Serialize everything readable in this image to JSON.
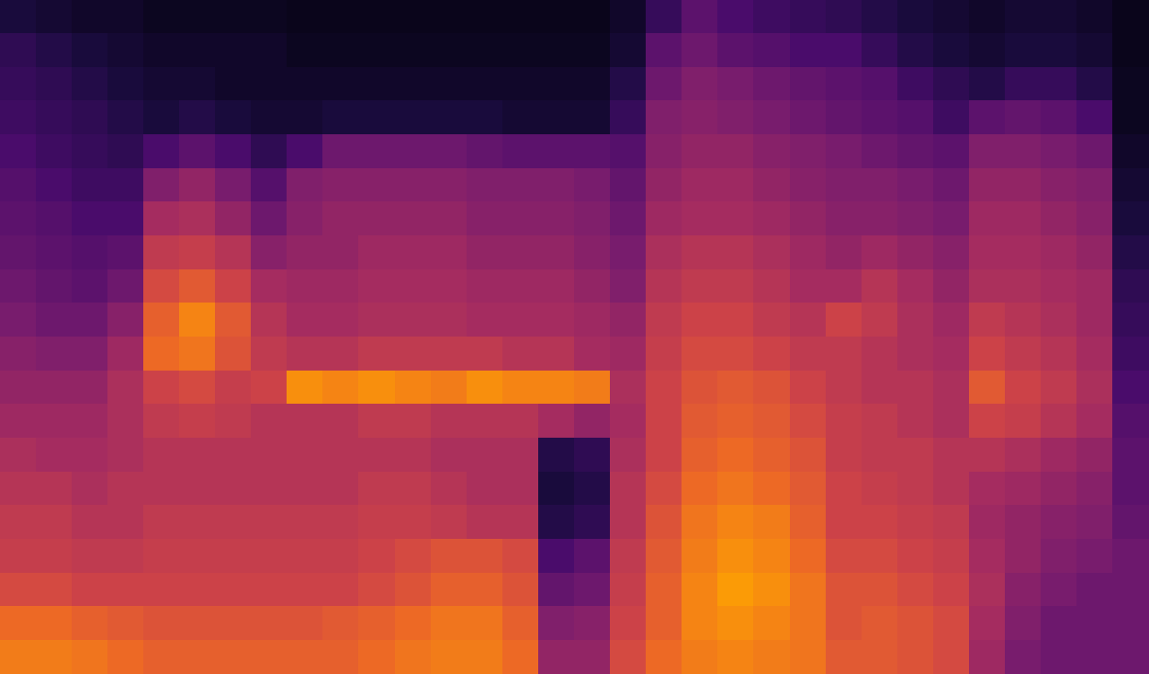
{
  "chart_data": {
    "type": "heatmap",
    "tick_labels": false,
    "grid": false,
    "color_range": [
      0,
      100
    ],
    "cells": [
      [
        12,
        10,
        8,
        8,
        6,
        6,
        6,
        6,
        5,
        5,
        5,
        5,
        5,
        5,
        5,
        5,
        5,
        8,
        20,
        30,
        25,
        22,
        20,
        18,
        15,
        12,
        10,
        8,
        10,
        10,
        8,
        5
      ],
      [
        18,
        15,
        12,
        10,
        8,
        8,
        8,
        8,
        6,
        6,
        6,
        6,
        6,
        6,
        6,
        6,
        6,
        10,
        30,
        35,
        30,
        28,
        25,
        25,
        20,
        15,
        12,
        10,
        12,
        12,
        10,
        5
      ],
      [
        20,
        18,
        15,
        12,
        10,
        10,
        8,
        8,
        8,
        8,
        8,
        8,
        8,
        8,
        8,
        8,
        8,
        15,
        35,
        40,
        38,
        35,
        32,
        30,
        28,
        22,
        18,
        15,
        20,
        20,
        15,
        6
      ],
      [
        22,
        20,
        18,
        15,
        12,
        15,
        12,
        10,
        10,
        12,
        12,
        12,
        12,
        12,
        10,
        10,
        10,
        20,
        40,
        42,
        40,
        38,
        35,
        32,
        30,
        28,
        22,
        30,
        32,
        30,
        25,
        6
      ],
      [
        25,
        22,
        20,
        18,
        25,
        30,
        25,
        18,
        25,
        35,
        35,
        35,
        35,
        32,
        30,
        30,
        30,
        28,
        42,
        45,
        45,
        42,
        40,
        38,
        35,
        32,
        30,
        40,
        40,
        38,
        35,
        8
      ],
      [
        28,
        25,
        22,
        22,
        40,
        45,
        38,
        28,
        40,
        42,
        42,
        42,
        42,
        40,
        40,
        40,
        38,
        32,
        45,
        48,
        48,
        45,
        42,
        40,
        40,
        38,
        35,
        45,
        45,
        42,
        40,
        10
      ],
      [
        30,
        28,
        25,
        25,
        50,
        52,
        45,
        35,
        42,
        45,
        45,
        45,
        45,
        42,
        42,
        42,
        40,
        35,
        48,
        50,
        50,
        48,
        45,
        42,
        42,
        40,
        38,
        48,
        48,
        45,
        42,
        12
      ],
      [
        32,
        30,
        28,
        30,
        58,
        60,
        55,
        42,
        45,
        45,
        48,
        48,
        48,
        45,
        45,
        45,
        42,
        38,
        52,
        55,
        55,
        52,
        48,
        45,
        48,
        45,
        42,
        50,
        50,
        48,
        45,
        15
      ],
      [
        35,
        32,
        30,
        35,
        65,
        70,
        62,
        50,
        48,
        48,
        50,
        50,
        50,
        48,
        48,
        48,
        45,
        40,
        55,
        58,
        58,
        55,
        50,
        50,
        55,
        50,
        45,
        52,
        52,
        50,
        48,
        18
      ],
      [
        38,
        35,
        35,
        42,
        72,
        82,
        70,
        55,
        50,
        50,
        52,
        52,
        52,
        50,
        50,
        50,
        48,
        45,
        58,
        62,
        62,
        58,
        55,
        62,
        58,
        52,
        48,
        58,
        55,
        52,
        48,
        20
      ],
      [
        42,
        40,
        40,
        48,
        75,
        78,
        68,
        58,
        55,
        55,
        58,
        58,
        58,
        58,
        55,
        55,
        50,
        48,
        60,
        65,
        65,
        62,
        58,
        58,
        55,
        52,
        50,
        62,
        58,
        55,
        50,
        22
      ],
      [
        45,
        45,
        45,
        52,
        62,
        65,
        60,
        62,
        85,
        82,
        85,
        82,
        80,
        85,
        82,
        82,
        80,
        52,
        62,
        68,
        70,
        68,
        62,
        58,
        55,
        55,
        52,
        70,
        62,
        58,
        52,
        25
      ],
      [
        48,
        48,
        48,
        52,
        58,
        60,
        58,
        55,
        55,
        55,
        58,
        58,
        55,
        55,
        55,
        50,
        45,
        50,
        62,
        70,
        72,
        70,
        65,
        60,
        58,
        55,
        52,
        62,
        60,
        55,
        50,
        28
      ],
      [
        52,
        50,
        50,
        52,
        55,
        55,
        55,
        55,
        55,
        55,
        55,
        55,
        52,
        52,
        52,
        15,
        18,
        52,
        62,
        72,
        75,
        72,
        68,
        60,
        58,
        58,
        55,
        55,
        52,
        48,
        45,
        30
      ],
      [
        55,
        55,
        52,
        55,
        55,
        55,
        55,
        55,
        55,
        55,
        58,
        58,
        55,
        52,
        52,
        12,
        15,
        55,
        65,
        75,
        78,
        75,
        70,
        62,
        60,
        58,
        55,
        50,
        48,
        45,
        42,
        30
      ],
      [
        58,
        58,
        55,
        55,
        58,
        58,
        58,
        58,
        58,
        58,
        60,
        60,
        58,
        55,
        55,
        15,
        18,
        55,
        68,
        78,
        82,
        80,
        72,
        62,
        62,
        60,
        58,
        48,
        45,
        42,
        40,
        32
      ],
      [
        60,
        60,
        58,
        58,
        60,
        60,
        60,
        60,
        60,
        60,
        62,
        65,
        68,
        68,
        65,
        25,
        30,
        58,
        70,
        80,
        85,
        82,
        75,
        65,
        65,
        62,
        60,
        50,
        45,
        40,
        38,
        35
      ],
      [
        65,
        65,
        62,
        62,
        62,
        62,
        62,
        62,
        62,
        62,
        65,
        68,
        72,
        72,
        68,
        32,
        35,
        60,
        72,
        82,
        88,
        85,
        78,
        68,
        68,
        65,
        62,
        52,
        42,
        38,
        35,
        35
      ],
      [
        75,
        75,
        72,
        70,
        68,
        68,
        68,
        68,
        68,
        70,
        72,
        75,
        78,
        78,
        72,
        40,
        42,
        62,
        72,
        82,
        85,
        82,
        78,
        68,
        70,
        68,
        65,
        50,
        40,
        35,
        35,
        35
      ],
      [
        80,
        80,
        78,
        75,
        72,
        72,
        72,
        72,
        72,
        72,
        75,
        78,
        80,
        80,
        75,
        45,
        45,
        65,
        75,
        80,
        82,
        80,
        78,
        70,
        70,
        68,
        65,
        48,
        38,
        35,
        35,
        35
      ]
    ]
  }
}
